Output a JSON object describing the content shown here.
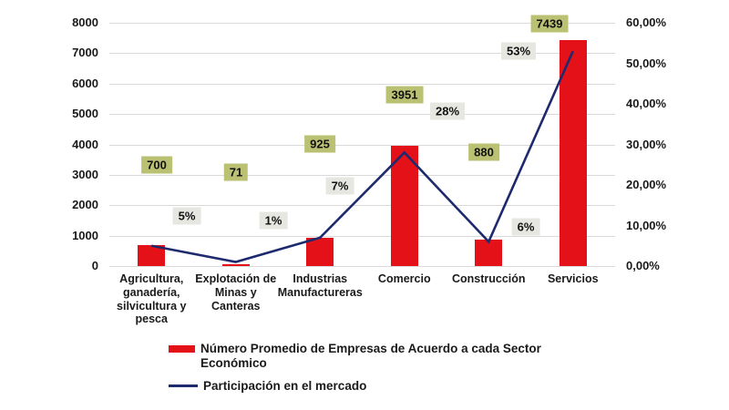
{
  "chart_data": {
    "type": "combo-bar-line",
    "title": "",
    "categories": [
      "Agricultura,\nganadería,\nsilvicultura y\npesca",
      "Explotación de\nMinas y\nCanteras",
      "Industrias\nManufactureras",
      "Comercio",
      "Construcción",
      "Servicios"
    ],
    "series": [
      {
        "name": "Número Promedio de Empresas de Acuerdo a cada Sector Económico",
        "type": "bar",
        "axis": "left",
        "values": [
          700,
          71,
          925,
          3951,
          880,
          7439
        ],
        "labels": [
          "700",
          "71",
          "925",
          "3951",
          "880",
          "7439"
        ],
        "color": "#e41118",
        "label_bg": "#bac172"
      },
      {
        "name": "Participación en el mercado",
        "type": "line",
        "axis": "right",
        "values": [
          5,
          1,
          7,
          28,
          6,
          53
        ],
        "labels": [
          "5%",
          "1%",
          "7%",
          "28%",
          "6%",
          "53%"
        ],
        "color": "#1e2a6e",
        "label_bg": "#e7e7e1"
      }
    ],
    "left_axis": {
      "min": 0,
      "max": 8000,
      "step": 1000,
      "ticks": [
        "0",
        "1000",
        "2000",
        "3000",
        "4000",
        "5000",
        "6000",
        "7000",
        "8000"
      ]
    },
    "right_axis": {
      "min": 0,
      "max": 60,
      "step": 10,
      "ticks": [
        "0,00%",
        "10,00%",
        "20,00%",
        "30,00%",
        "40,00%",
        "50,00%",
        "60,00%"
      ]
    },
    "grid": true,
    "legend_position": "bottom-left",
    "background": "#ffffff",
    "gridline_color": "#d9d9d9",
    "text_color": "#1a1a1a"
  },
  "legend": {
    "items": [
      {
        "label": "Número Promedio de Empresas de Acuerdo a cada Sector\nEconómico",
        "swatch": "bar",
        "color": "#e41118"
      },
      {
        "label": "Participación en el mercado",
        "swatch": "line",
        "color": "#1e2a6e"
      }
    ]
  }
}
